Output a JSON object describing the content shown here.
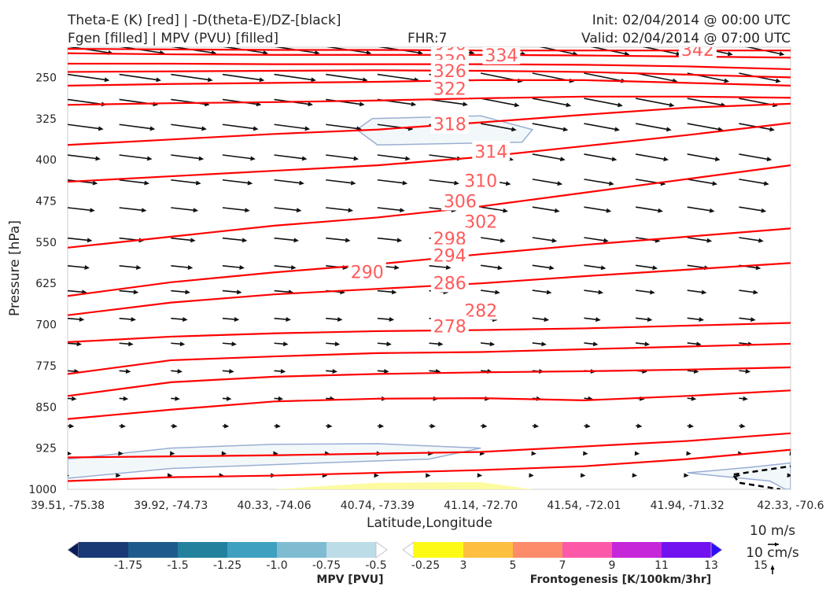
{
  "header": {
    "title_line1": "Theta-E (K) [red] | -D(theta-E)/DZ-[black]",
    "title_line2": "Fgen [filled] | MPV (PVU) [filled]",
    "fhr": "FHR:7",
    "init": "Init: 02/04/2014 @ 00:00 UTC",
    "valid": "Valid: 02/04/2014 @ 07:00 UTC"
  },
  "axes": {
    "xlabel": "Latitude,Longitude",
    "ylabel": "Pressure [hPa]",
    "x_ticks": [
      "39.51, -75.38",
      "39.92, -74.73",
      "40.33, -74.06",
      "40.74, -73.39",
      "41.14, -72.70",
      "41.54, -72.01",
      "41.94, -71.32",
      "42.33, -70.6"
    ],
    "y_ticks": [
      "250",
      "325",
      "400",
      "475",
      "550",
      "625",
      "700",
      "775",
      "850",
      "925",
      "1000"
    ]
  },
  "chart_data": {
    "type": "line",
    "title": "Theta-E (K) [red] | -D(theta-E)/DZ-[black] / Fgen [filled] | MPV (PVU) [filled]",
    "xlabel": "Latitude,Longitude",
    "ylabel": "Pressure [hPa]",
    "x": [
      0,
      1,
      2,
      3,
      4,
      5,
      6,
      7
    ],
    "x_labels": [
      "39.51, -75.38",
      "39.92, -74.73",
      "40.33, -74.06",
      "40.74, -73.39",
      "41.14, -72.70",
      "41.54, -72.01",
      "41.94, -71.32",
      "42.33, -70.6"
    ],
    "ylim": [
      1000,
      195
    ],
    "y_axis": "pressure (hPa), inverted",
    "series": [
      {
        "name": "278",
        "values": [
          985,
          978,
          975,
          970,
          965,
          958,
          945,
          928
        ]
      },
      {
        "name": "282",
        "values": [
          942,
          940,
          938,
          935,
          932,
          922,
          912,
          898
        ]
      },
      {
        "name": "286",
        "values": [
          872,
          855,
          840,
          835,
          834,
          838,
          830,
          820
        ]
      },
      {
        "name": "290",
        "values": [
          830,
          805,
          795,
          790,
          787,
          785,
          782,
          778
        ]
      },
      {
        "name": "294",
        "values": [
          790,
          765,
          758,
          752,
          750,
          745,
          740,
          735
        ]
      },
      {
        "name": "298",
        "values": [
          732,
          722,
          716,
          712,
          710,
          707,
          702,
          697
        ]
      },
      {
        "name": "302",
        "values": [
          683,
          660,
          645,
          635,
          625,
          612,
          600,
          588
        ]
      },
      {
        "name": "306",
        "values": [
          648,
          623,
          605,
          590,
          572,
          555,
          540,
          525
        ]
      },
      {
        "name": "310",
        "values": [
          560,
          540,
          520,
          505,
          485,
          460,
          435,
          410
        ]
      },
      {
        "name": "314",
        "values": [
          440,
          430,
          420,
          410,
          395,
          375,
          355,
          333
        ]
      },
      {
        "name": "318",
        "values": [
          373,
          363,
          353,
          345,
          332,
          318,
          305,
          298
        ]
      },
      {
        "name": "322",
        "values": [
          300,
          297,
          295,
          292,
          288,
          285,
          285,
          287
        ]
      },
      {
        "name": "326",
        "values": [
          265,
          262,
          260,
          258,
          255,
          255,
          260,
          265
        ]
      },
      {
        "name": "330",
        "values": [
          240,
          239,
          238,
          237,
          238,
          240,
          245,
          250
        ]
      },
      {
        "name": "334",
        "values": [
          225,
          225,
          226,
          226,
          226,
          227,
          230,
          235
        ]
      },
      {
        "name": "338",
        "values": [
          206,
          208,
          209,
          209,
          209,
          210,
          212,
          214
        ]
      },
      {
        "name": "342",
        "values": [
          198,
          199,
          200,
          200,
          201,
          201,
          201,
          201
        ]
      }
    ],
    "contour_labels": [
      {
        "text": "338",
        "x": 3.7,
        "p": 200
      },
      {
        "text": "334",
        "x": 4.2,
        "p": 209
      },
      {
        "text": "342",
        "x": 6.1,
        "p": 199
      },
      {
        "text": "330",
        "x": 3.7,
        "p": 220
      },
      {
        "text": "326",
        "x": 3.7,
        "p": 238
      },
      {
        "text": "322",
        "x": 3.7,
        "p": 270
      },
      {
        "text": "318",
        "x": 3.7,
        "p": 335
      },
      {
        "text": "314",
        "x": 4.1,
        "p": 385
      },
      {
        "text": "310",
        "x": 4.0,
        "p": 438
      },
      {
        "text": "306",
        "x": 3.8,
        "p": 475
      },
      {
        "text": "302",
        "x": 4.0,
        "p": 512
      },
      {
        "text": "298",
        "x": 3.7,
        "p": 543
      },
      {
        "text": "294",
        "x": 3.7,
        "p": 574
      },
      {
        "text": "290",
        "x": 2.9,
        "p": 604
      },
      {
        "text": "286",
        "x": 3.7,
        "p": 624
      },
      {
        "text": "282",
        "x": 4.0,
        "p": 674
      },
      {
        "text": "278",
        "x": 3.7,
        "p": 703
      }
    ],
    "mpv_colorbar": {
      "label": "MPV [PVU]",
      "ticks": [
        "-1.75",
        "-1.5",
        "-1.25",
        "-1.0",
        "-0.75",
        "-0.5",
        "-0.25"
      ],
      "colors": [
        "#081d58",
        "#1a3a75",
        "#1e5b8c",
        "#23819e",
        "#3fa0c0",
        "#7fbcd2",
        "#bcdce7",
        "#ffffff"
      ]
    },
    "fgen_colorbar": {
      "label": "Frontogenesis [K/100km/3hr]",
      "ticks": [
        "3",
        "5",
        "7",
        "9",
        "11",
        "13",
        "15"
      ],
      "colors": [
        "#ffffff",
        "#fdfb16",
        "#fdbf40",
        "#fd8c6a",
        "#fc5aa8",
        "#c627d9",
        "#7312f0",
        "#2d0ef8"
      ]
    },
    "wind_scale": {
      "horizontal": "10 m/s",
      "vertical": "10 cm/s"
    },
    "colors": {
      "theta_e": "#ff0000",
      "wind": "#000000",
      "mpv_fill": "#f2f8f9",
      "mpv_edge": "#9aaed4",
      "fgen_fill": "#fdfba0"
    }
  }
}
